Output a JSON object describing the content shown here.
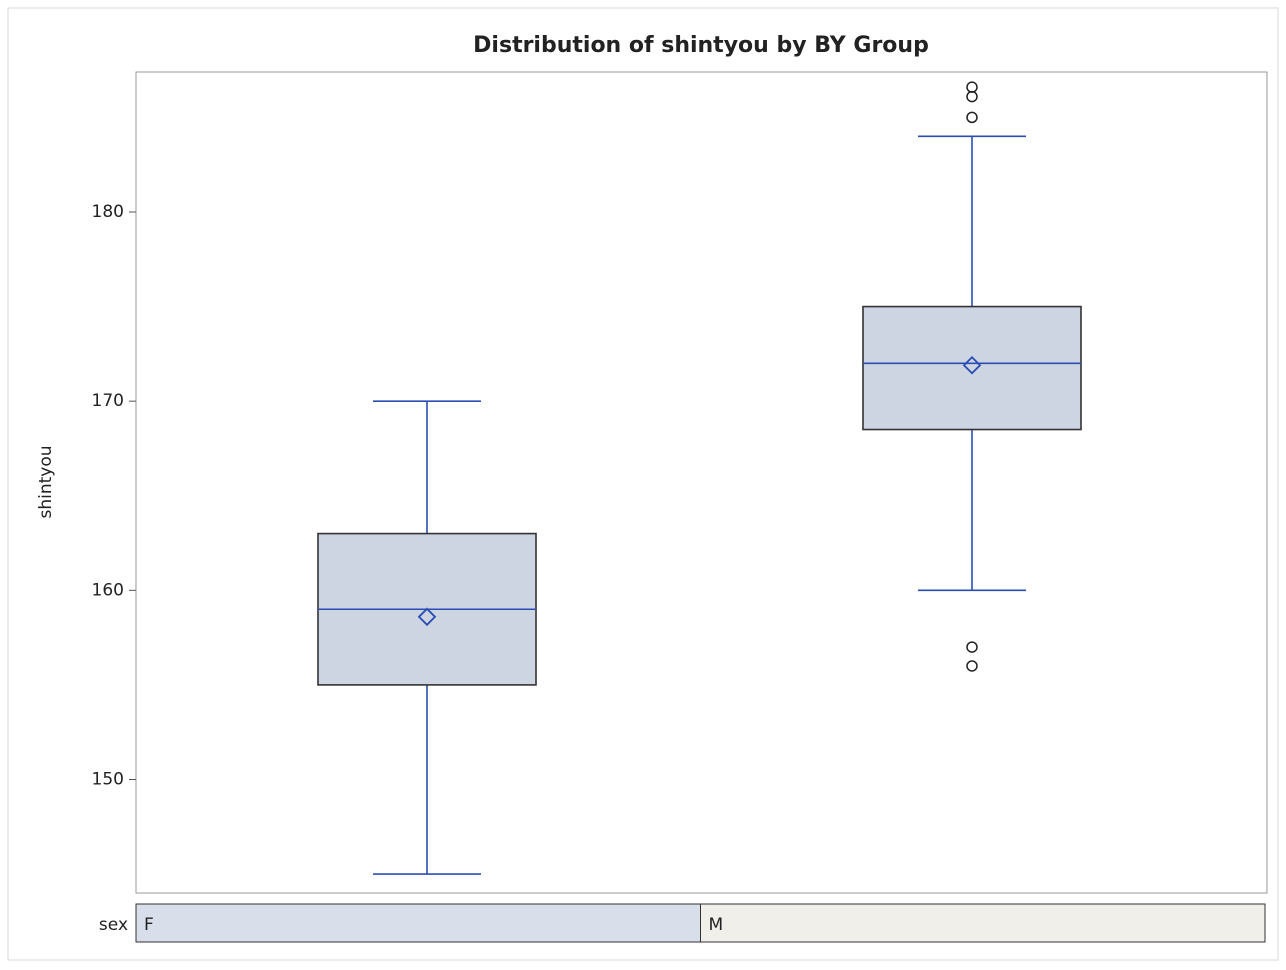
{
  "chart_data": {
    "type": "box",
    "title": "Distribution of shintyou by BY Group",
    "ylabel": "shintyou",
    "group_label": "sex",
    "categories": [
      "F",
      "M"
    ],
    "boxes": [
      {
        "whisker_low": 145,
        "q1": 155,
        "median": 159,
        "q3": 163,
        "whisker_high": 170,
        "mean": 158.6,
        "outliers": []
      },
      {
        "whisker_low": 160,
        "q1": 168.5,
        "median": 172,
        "q3": 175,
        "whisker_high": 184,
        "mean": 171.9,
        "outliers": [
          186.6,
          186.1,
          185,
          157,
          156
        ]
      }
    ],
    "color": "#2a4db3",
    "box_fill": "#cdd5e3",
    "ylim": [
      144,
      187.4
    ],
    "yticks": [
      150,
      160,
      170,
      180
    ]
  }
}
